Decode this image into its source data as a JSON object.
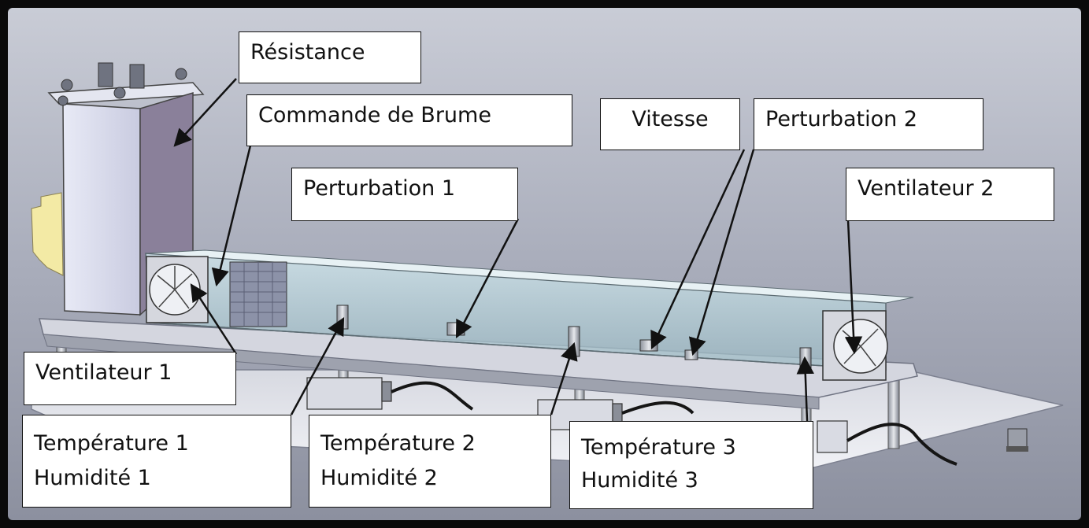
{
  "labels": {
    "resistance": "Résistance",
    "commande_brume": "Commande de Brume",
    "vitesse": "Vitesse",
    "perturbation_2": "Perturbation 2",
    "perturbation_1": "Perturbation 1",
    "ventilateur_2": "Ventilateur 2",
    "ventilateur_1": "Ventilateur 1",
    "temperature_1": "Température 1",
    "humidite_1": "Humidité 1",
    "temperature_2": "Température 2",
    "humidite_2": "Humidité 2",
    "temperature_3": "Température 3",
    "humidite_3": "Humidité 3"
  }
}
